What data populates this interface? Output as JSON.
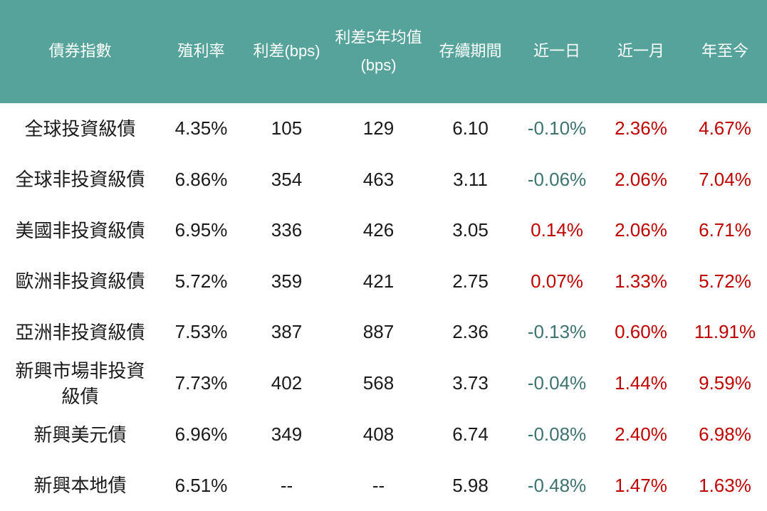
{
  "colors": {
    "header_bg": "#55a39b",
    "header_text": "#ffffff",
    "positive_change": "#c00000",
    "negative_change": "#3e7370",
    "neutral_text": "#1a1a1a",
    "page_bg": "#ffffff"
  },
  "chart_data": {
    "type": "table",
    "columns": [
      {
        "key": "name",
        "label": "債券指數",
        "type": "label"
      },
      {
        "key": "yield",
        "label": "殖利率",
        "type": "number"
      },
      {
        "key": "spread_bps",
        "label": "利差(bps)",
        "type": "number"
      },
      {
        "key": "spread_5y_avg_bps",
        "label": "利差5年均值\n(bps)",
        "type": "number"
      },
      {
        "key": "duration",
        "label": "存續期間",
        "type": "number"
      },
      {
        "key": "chg_1d",
        "label": "近一日",
        "type": "change"
      },
      {
        "key": "chg_1m",
        "label": "近一月",
        "type": "change"
      },
      {
        "key": "chg_ytd",
        "label": "年至今",
        "type": "change"
      }
    ],
    "rows": [
      {
        "name": "全球投資級債",
        "yield": "4.35%",
        "spread_bps": "105",
        "spread_5y_avg_bps": "129",
        "duration": "6.10",
        "chg_1d": "-0.10%",
        "chg_1m": "2.36%",
        "chg_ytd": "4.67%"
      },
      {
        "name": "全球非投資級債",
        "yield": "6.86%",
        "spread_bps": "354",
        "spread_5y_avg_bps": "463",
        "duration": "3.11",
        "chg_1d": "-0.06%",
        "chg_1m": "2.06%",
        "chg_ytd": "7.04%"
      },
      {
        "name": "美國非投資級債",
        "yield": "6.95%",
        "spread_bps": "336",
        "spread_5y_avg_bps": "426",
        "duration": "3.05",
        "chg_1d": "0.14%",
        "chg_1m": "2.06%",
        "chg_ytd": "6.71%"
      },
      {
        "name": "歐洲非投資級債",
        "yield": "5.72%",
        "spread_bps": "359",
        "spread_5y_avg_bps": "421",
        "duration": "2.75",
        "chg_1d": "0.07%",
        "chg_1m": "1.33%",
        "chg_ytd": "5.72%"
      },
      {
        "name": "亞洲非投資級債",
        "yield": "7.53%",
        "spread_bps": "387",
        "spread_5y_avg_bps": "887",
        "duration": "2.36",
        "chg_1d": "-0.13%",
        "chg_1m": "0.60%",
        "chg_ytd": "11.91%"
      },
      {
        "name": "新興市場非投資\n級債",
        "yield": "7.73%",
        "spread_bps": "402",
        "spread_5y_avg_bps": "568",
        "duration": "3.73",
        "chg_1d": "-0.04%",
        "chg_1m": "1.44%",
        "chg_ytd": "9.59%"
      },
      {
        "name": "新興美元債",
        "yield": "6.96%",
        "spread_bps": "349",
        "spread_5y_avg_bps": "408",
        "duration": "6.74",
        "chg_1d": "-0.08%",
        "chg_1m": "2.40%",
        "chg_ytd": "6.98%"
      },
      {
        "name": "新興本地債",
        "yield": "6.51%",
        "spread_bps": "--",
        "spread_5y_avg_bps": "--",
        "duration": "5.98",
        "chg_1d": "-0.48%",
        "chg_1m": "1.47%",
        "chg_ytd": "1.63%"
      }
    ]
  }
}
